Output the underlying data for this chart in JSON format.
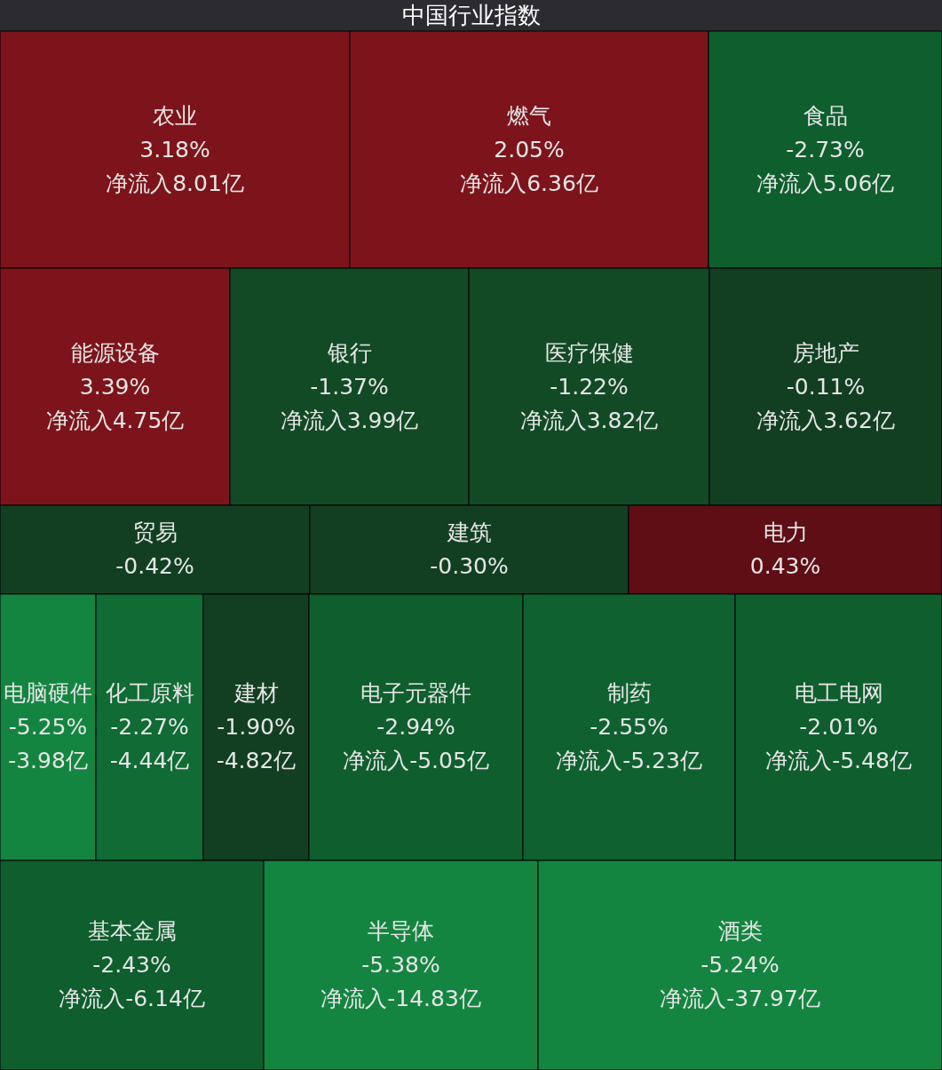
{
  "chart_data": {
    "type": "other",
    "title": "中国行业指数",
    "categories": [
      "农业",
      "燃气",
      "食品",
      "能源设备",
      "银行",
      "医疗保健",
      "房地产",
      "贸易",
      "建筑",
      "电力",
      "电脑硬件",
      "化工原料",
      "建材",
      "电子元器件",
      "制药",
      "电工电网",
      "基本金属",
      "半导体",
      "酒类"
    ],
    "values": [
      3.18,
      2.05,
      -2.73,
      3.39,
      -1.37,
      -1.22,
      -0.11,
      -0.42,
      -0.3,
      0.43,
      -5.25,
      -2.27,
      -1.9,
      -2.94,
      -2.55,
      -2.01,
      -2.43,
      -5.38,
      -5.24
    ],
    "value_labels": [
      "3.18%",
      "2.05%",
      "-2.73%",
      "3.39%",
      "-1.37%",
      "-1.22%",
      "-0.11%",
      "-0.42%",
      "-0.30%",
      "0.43%",
      "-5.25%",
      "-2.27%",
      "-1.90%",
      "-2.94%",
      "-2.55%",
      "-2.01%",
      "-2.43%",
      "-5.38%",
      "-5.24%"
    ],
    "colors": [
      "#7d141b",
      "#7d141b",
      "#0f5e2e",
      "#7d141b",
      "#124a26",
      "#124a26",
      "#123f22",
      "#123f22",
      "#123f22",
      "#5f0e16",
      "#148540",
      "#106b34",
      "#123f22",
      "#0f5e2e",
      "#0f6230",
      "#0f5e2e",
      "#0f5e2e",
      "#148540",
      "#148540"
    ],
    "annotations": [
      {
        "text": "净流入8.01亿",
        "x": "农业"
      },
      {
        "text": "净流入6.36亿",
        "x": "燃气"
      },
      {
        "text": "净流入5.06亿",
        "x": "食品"
      },
      {
        "text": "净流入4.75亿",
        "x": "能源设备"
      },
      {
        "text": "净流入3.99亿",
        "x": "银行"
      },
      {
        "text": "净流入3.82亿",
        "x": "医疗保健"
      },
      {
        "text": "净流入3.62亿",
        "x": "房地产"
      },
      {
        "text": "-3.98亿",
        "x": "电脑硬件"
      },
      {
        "text": "-4.44亿",
        "x": "化工原料"
      },
      {
        "text": "-4.82亿",
        "x": "建材"
      },
      {
        "text": "净流入-5.05亿",
        "x": "电子元器件"
      },
      {
        "text": "净流入-5.23亿",
        "x": "制药"
      },
      {
        "text": "净流入-5.48亿",
        "x": "电工电网"
      },
      {
        "text": "净流入-6.14亿",
        "x": "基本金属"
      },
      {
        "text": "净流入-14.83亿",
        "x": "半导体"
      },
      {
        "text": "净流入-37.97亿",
        "x": "酒类"
      }
    ]
  }
}
